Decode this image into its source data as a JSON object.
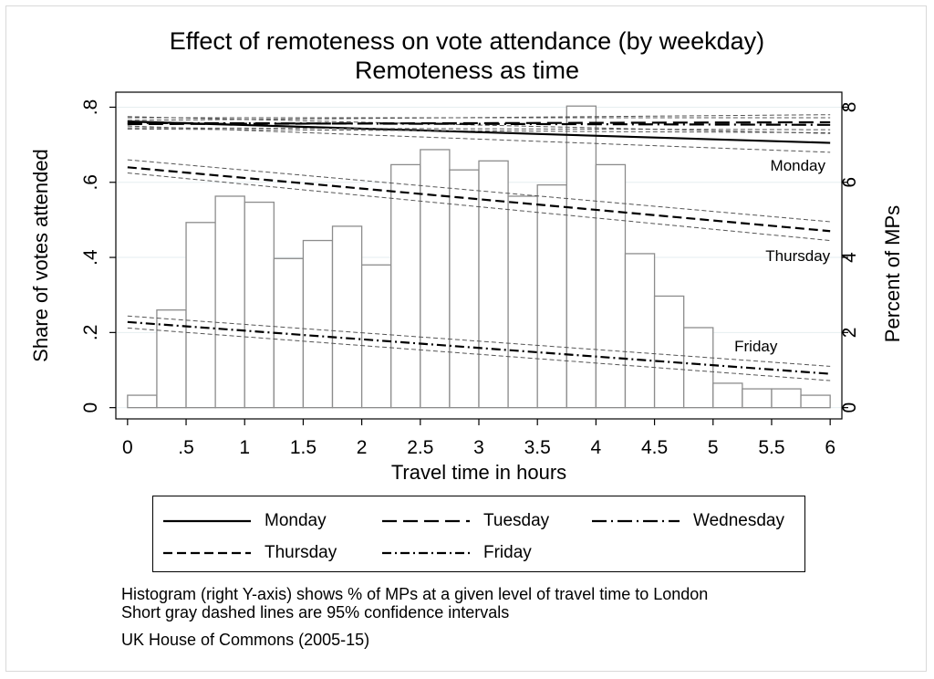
{
  "chart_data": {
    "type": "bar+line",
    "title": "Effect of remoteness on vote attendance (by weekday)",
    "subtitle": "Remoteness as time",
    "xlabel": "Travel time in hours",
    "ylabel_left": "Share of votes attended",
    "ylabel_right": "Percent of MPs",
    "xlim": [
      -0.1,
      6.1
    ],
    "ylim_left": [
      -0.03,
      0.84
    ],
    "ylim_right": [
      -0.3,
      8.4
    ],
    "x_ticks": [
      {
        "v": 0,
        "label": "0"
      },
      {
        "v": 0.5,
        "label": ".5"
      },
      {
        "v": 1,
        "label": "1"
      },
      {
        "v": 1.5,
        "label": "1.5"
      },
      {
        "v": 2,
        "label": "2"
      },
      {
        "v": 2.5,
        "label": "2.5"
      },
      {
        "v": 3,
        "label": "3"
      },
      {
        "v": 3.5,
        "label": "3.5"
      },
      {
        "v": 4,
        "label": "4"
      },
      {
        "v": 4.5,
        "label": "4.5"
      },
      {
        "v": 5,
        "label": "5"
      },
      {
        "v": 5.5,
        "label": "5.5"
      },
      {
        "v": 6,
        "label": "6"
      }
    ],
    "y_left_ticks": [
      {
        "v": 0,
        "label": "0"
      },
      {
        "v": 0.2,
        "label": ".2"
      },
      {
        "v": 0.4,
        "label": ".4"
      },
      {
        "v": 0.6,
        "label": ".6"
      },
      {
        "v": 0.8,
        "label": ".8"
      }
    ],
    "y_right_ticks": [
      {
        "v": 0,
        "label": "0"
      },
      {
        "v": 2,
        "label": "2"
      },
      {
        "v": 4,
        "label": "4"
      },
      {
        "v": 6,
        "label": "6"
      },
      {
        "v": 8,
        "label": "8"
      }
    ],
    "histogram": {
      "axis": "right",
      "bin_width": 0.25,
      "bins": [
        {
          "x0": 0.0,
          "pct": 0.33
        },
        {
          "x0": 0.25,
          "pct": 2.6
        },
        {
          "x0": 0.5,
          "pct": 4.93
        },
        {
          "x0": 0.75,
          "pct": 5.63
        },
        {
          "x0": 1.0,
          "pct": 5.47
        },
        {
          "x0": 1.25,
          "pct": 3.97
        },
        {
          "x0": 1.5,
          "pct": 4.45
        },
        {
          "x0": 1.75,
          "pct": 4.83
        },
        {
          "x0": 2.0,
          "pct": 3.8
        },
        {
          "x0": 2.25,
          "pct": 6.47
        },
        {
          "x0": 2.5,
          "pct": 6.87
        },
        {
          "x0": 2.75,
          "pct": 6.33
        },
        {
          "x0": 3.0,
          "pct": 6.57
        },
        {
          "x0": 3.25,
          "pct": 5.63
        },
        {
          "x0": 3.5,
          "pct": 5.93
        },
        {
          "x0": 3.75,
          "pct": 8.03
        },
        {
          "x0": 4.0,
          "pct": 6.47
        },
        {
          "x0": 4.25,
          "pct": 4.1
        },
        {
          "x0": 4.5,
          "pct": 2.97
        },
        {
          "x0": 4.75,
          "pct": 2.13
        },
        {
          "x0": 5.0,
          "pct": 0.65
        },
        {
          "x0": 5.25,
          "pct": 0.5
        },
        {
          "x0": 5.5,
          "pct": 0.5
        },
        {
          "x0": 5.75,
          "pct": 0.33
        }
      ]
    },
    "series": [
      {
        "name": "Monday",
        "style": "solid",
        "x": [
          0,
          6
        ],
        "y": [
          0.762,
          0.705
        ],
        "ci_low": [
          0.75,
          0.68
        ],
        "ci_high": [
          0.775,
          0.73
        ]
      },
      {
        "name": "Tuesday",
        "style": "longdash",
        "x": [
          0,
          6
        ],
        "y": [
          0.755,
          0.76
        ],
        "ci_low": [
          0.745,
          0.74
        ],
        "ci_high": [
          0.765,
          0.78
        ]
      },
      {
        "name": "Wednesday",
        "style": "longdashdot",
        "x": [
          0,
          6
        ],
        "y": [
          0.758,
          0.753
        ],
        "ci_low": [
          0.742,
          0.732
        ],
        "ci_high": [
          0.772,
          0.772
        ]
      },
      {
        "name": "Thursday",
        "style": "dash",
        "x": [
          0,
          6
        ],
        "y": [
          0.64,
          0.47
        ],
        "ci_low": [
          0.625,
          0.445
        ],
        "ci_high": [
          0.66,
          0.495
        ]
      },
      {
        "name": "Friday",
        "style": "dashdot",
        "x": [
          0,
          6
        ],
        "y": [
          0.228,
          0.09
        ],
        "ci_low": [
          0.212,
          0.072
        ],
        "ci_high": [
          0.244,
          0.11
        ]
      }
    ],
    "annotations": [
      {
        "text": "Monday",
        "x": 5.96,
        "y": 0.645
      },
      {
        "text": "Thursday",
        "x": 6.0,
        "y": 0.405
      },
      {
        "text": "Friday",
        "x": 5.55,
        "y": 0.165
      }
    ],
    "grid": true,
    "legend_position": "bottom"
  },
  "legend": [
    {
      "label": "Monday",
      "style": "solid"
    },
    {
      "label": "Tuesday",
      "style": "longdash"
    },
    {
      "label": "Wednesday",
      "style": "longdashdot"
    },
    {
      "label": "Thursday",
      "style": "dash"
    },
    {
      "label": "Friday",
      "style": "dashdot"
    }
  ],
  "notes": {
    "line1": "Histogram (right Y-axis) shows % of MPs at a given level of travel time to London",
    "line2": "Short gray dashed lines are 95% confidence intervals",
    "source": "UK House of Commons (2005-15)"
  },
  "colors": {
    "line": "#000000",
    "ci": "#555555",
    "bar_edge": "#8c8c8c",
    "grid": "#e6eef0"
  }
}
